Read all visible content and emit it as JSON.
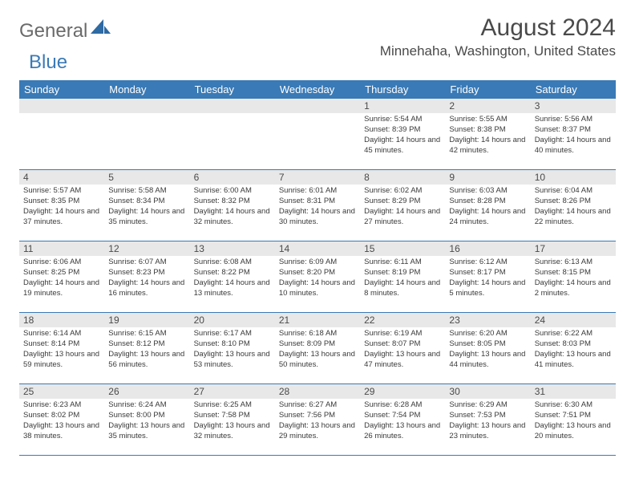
{
  "logo": {
    "word1": "General",
    "word2": "Blue"
  },
  "title": {
    "month": "August 2024",
    "location": "Minnehaha, Washington, United States"
  },
  "colors": {
    "accent": "#3a7ab6",
    "band": "#e8e8e8",
    "text_dark": "#3a3a3a",
    "text_muted": "#4a4a4a",
    "background": "#ffffff"
  },
  "weekdays": [
    "Sunday",
    "Monday",
    "Tuesday",
    "Wednesday",
    "Thursday",
    "Friday",
    "Saturday"
  ],
  "weeks": [
    [
      null,
      null,
      null,
      null,
      {
        "n": "1",
        "sr": "5:54 AM",
        "ss": "8:39 PM",
        "dl": "14 hours and 45 minutes."
      },
      {
        "n": "2",
        "sr": "5:55 AM",
        "ss": "8:38 PM",
        "dl": "14 hours and 42 minutes."
      },
      {
        "n": "3",
        "sr": "5:56 AM",
        "ss": "8:37 PM",
        "dl": "14 hours and 40 minutes."
      }
    ],
    [
      {
        "n": "4",
        "sr": "5:57 AM",
        "ss": "8:35 PM",
        "dl": "14 hours and 37 minutes."
      },
      {
        "n": "5",
        "sr": "5:58 AM",
        "ss": "8:34 PM",
        "dl": "14 hours and 35 minutes."
      },
      {
        "n": "6",
        "sr": "6:00 AM",
        "ss": "8:32 PM",
        "dl": "14 hours and 32 minutes."
      },
      {
        "n": "7",
        "sr": "6:01 AM",
        "ss": "8:31 PM",
        "dl": "14 hours and 30 minutes."
      },
      {
        "n": "8",
        "sr": "6:02 AM",
        "ss": "8:29 PM",
        "dl": "14 hours and 27 minutes."
      },
      {
        "n": "9",
        "sr": "6:03 AM",
        "ss": "8:28 PM",
        "dl": "14 hours and 24 minutes."
      },
      {
        "n": "10",
        "sr": "6:04 AM",
        "ss": "8:26 PM",
        "dl": "14 hours and 22 minutes."
      }
    ],
    [
      {
        "n": "11",
        "sr": "6:06 AM",
        "ss": "8:25 PM",
        "dl": "14 hours and 19 minutes."
      },
      {
        "n": "12",
        "sr": "6:07 AM",
        "ss": "8:23 PM",
        "dl": "14 hours and 16 minutes."
      },
      {
        "n": "13",
        "sr": "6:08 AM",
        "ss": "8:22 PM",
        "dl": "14 hours and 13 minutes."
      },
      {
        "n": "14",
        "sr": "6:09 AM",
        "ss": "8:20 PM",
        "dl": "14 hours and 10 minutes."
      },
      {
        "n": "15",
        "sr": "6:11 AM",
        "ss": "8:19 PM",
        "dl": "14 hours and 8 minutes."
      },
      {
        "n": "16",
        "sr": "6:12 AM",
        "ss": "8:17 PM",
        "dl": "14 hours and 5 minutes."
      },
      {
        "n": "17",
        "sr": "6:13 AM",
        "ss": "8:15 PM",
        "dl": "14 hours and 2 minutes."
      }
    ],
    [
      {
        "n": "18",
        "sr": "6:14 AM",
        "ss": "8:14 PM",
        "dl": "13 hours and 59 minutes."
      },
      {
        "n": "19",
        "sr": "6:15 AM",
        "ss": "8:12 PM",
        "dl": "13 hours and 56 minutes."
      },
      {
        "n": "20",
        "sr": "6:17 AM",
        "ss": "8:10 PM",
        "dl": "13 hours and 53 minutes."
      },
      {
        "n": "21",
        "sr": "6:18 AM",
        "ss": "8:09 PM",
        "dl": "13 hours and 50 minutes."
      },
      {
        "n": "22",
        "sr": "6:19 AM",
        "ss": "8:07 PM",
        "dl": "13 hours and 47 minutes."
      },
      {
        "n": "23",
        "sr": "6:20 AM",
        "ss": "8:05 PM",
        "dl": "13 hours and 44 minutes."
      },
      {
        "n": "24",
        "sr": "6:22 AM",
        "ss": "8:03 PM",
        "dl": "13 hours and 41 minutes."
      }
    ],
    [
      {
        "n": "25",
        "sr": "6:23 AM",
        "ss": "8:02 PM",
        "dl": "13 hours and 38 minutes."
      },
      {
        "n": "26",
        "sr": "6:24 AM",
        "ss": "8:00 PM",
        "dl": "13 hours and 35 minutes."
      },
      {
        "n": "27",
        "sr": "6:25 AM",
        "ss": "7:58 PM",
        "dl": "13 hours and 32 minutes."
      },
      {
        "n": "28",
        "sr": "6:27 AM",
        "ss": "7:56 PM",
        "dl": "13 hours and 29 minutes."
      },
      {
        "n": "29",
        "sr": "6:28 AM",
        "ss": "7:54 PM",
        "dl": "13 hours and 26 minutes."
      },
      {
        "n": "30",
        "sr": "6:29 AM",
        "ss": "7:53 PM",
        "dl": "13 hours and 23 minutes."
      },
      {
        "n": "31",
        "sr": "6:30 AM",
        "ss": "7:51 PM",
        "dl": "13 hours and 20 minutes."
      }
    ]
  ],
  "labels": {
    "sunrise": "Sunrise:",
    "sunset": "Sunset:",
    "daylight": "Daylight:"
  }
}
